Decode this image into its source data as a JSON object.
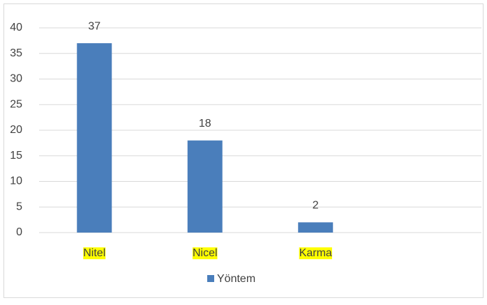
{
  "chart_data": {
    "type": "bar",
    "categories": [
      "Nitel",
      "Nicel",
      "Karma",
      null
    ],
    "series": [
      {
        "name": "Yöntem",
        "color": "#4a7ebb",
        "values": [
          37,
          18,
          2,
          null
        ]
      }
    ],
    "ylim": [
      0,
      40
    ],
    "yticks": [
      0,
      5,
      10,
      15,
      20,
      25,
      30,
      35,
      40
    ],
    "grid": true,
    "legend": "bottom",
    "category_highlight": "#ffff00"
  }
}
